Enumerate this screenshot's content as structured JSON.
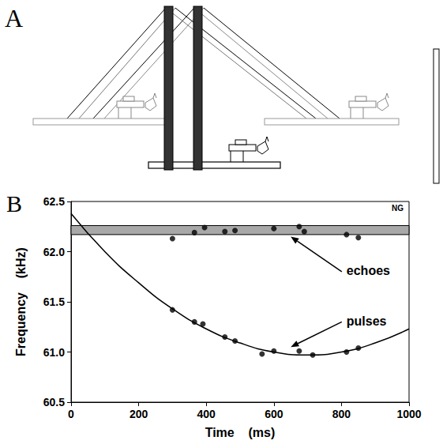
{
  "diagram": {
    "panel_label": "A"
  },
  "chart_data": {
    "type": "scatter",
    "panel_label": "B",
    "corner_label": "NG",
    "x_label": "Time    (ms)",
    "y_label": "Frequency    (kHz)",
    "xlim": [
      0,
      1000
    ],
    "xticks": [
      0,
      200,
      400,
      600,
      800,
      1000
    ],
    "ylim": [
      60.5,
      62.5
    ],
    "yticks": [
      60.5,
      {
        "value": 61,
        "label": "61.0"
      },
      61.5,
      {
        "value": 62,
        "label": "62.0"
      },
      62.5
    ],
    "grid": false,
    "series": [
      {
        "name": "echoes",
        "color": "#000000",
        "marker": "circle",
        "x": [
          300,
          365,
          395,
          455,
          485,
          600,
          675,
          690,
          815,
          850
        ],
        "values": [
          62.13,
          62.19,
          62.24,
          62.2,
          62.21,
          62.23,
          62.25,
          62.2,
          62.17,
          62.14
        ],
        "band": [
          62.17,
          62.26
        ],
        "label_at": [
          815,
          61.8
        ],
        "arrow_to": [
          650,
          62.15
        ]
      },
      {
        "name": "pulses",
        "color": "#000000",
        "marker": "circle",
        "line_style": "solid",
        "x": [
          300,
          365,
          390,
          455,
          485,
          565,
          600,
          675,
          715,
          815,
          850
        ],
        "values": [
          61.42,
          61.3,
          61.28,
          61.15,
          61.11,
          60.98,
          61.01,
          61.01,
          60.97,
          61.0,
          61.04
        ],
        "fit": {
          "x": [
            0,
            100,
            200,
            300,
            400,
            500,
            600,
            700,
            800,
            900,
            1000
          ],
          "values": [
            62.38,
            62.0,
            61.69,
            61.43,
            61.23,
            61.09,
            61.0,
            60.97,
            61.0,
            61.09,
            61.23
          ]
        },
        "label_at": [
          815,
          61.3
        ],
        "arrow_to": [
          650,
          61.05
        ]
      }
    ]
  }
}
